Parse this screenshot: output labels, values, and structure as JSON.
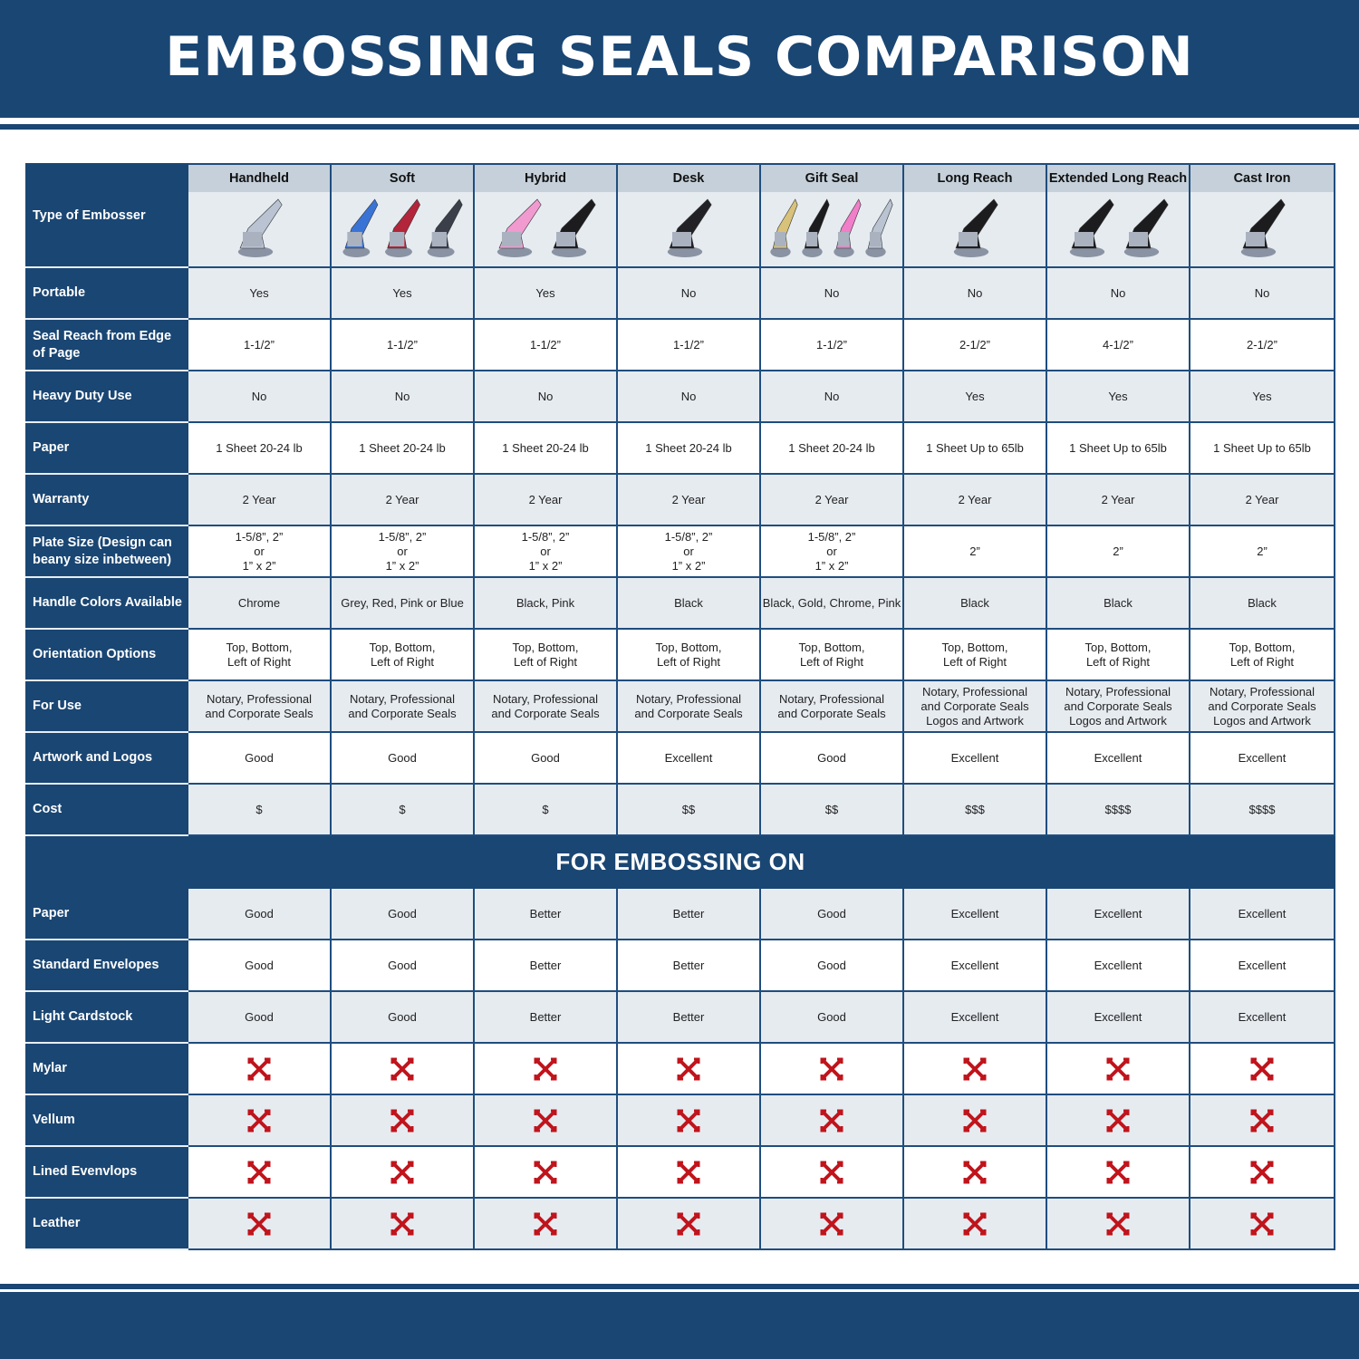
{
  "title": "EMBOSSING SEALS COMPARISON",
  "colors": {
    "brand_blue": "#1a4673",
    "header_gray": "#c5d0da",
    "row_alt": "#e6ebf0",
    "cross_red": "#c0141c"
  },
  "type_label": "Type of Embosser",
  "columns": [
    {
      "name": "Handheld",
      "image_colors": [
        "#b9c3d2"
      ]
    },
    {
      "name": "Soft",
      "image_colors": [
        "#3a73d6",
        "#b3253a",
        "#3a3f4a"
      ]
    },
    {
      "name": "Hybrid",
      "image_colors": [
        "#f09ad0",
        "#1c1c1e"
      ]
    },
    {
      "name": "Desk",
      "image_colors": [
        "#222226"
      ]
    },
    {
      "name": "Gift Seal",
      "image_colors": [
        "#d8c27a",
        "#1c1c1e",
        "#f07ec8",
        "#b9c3d2"
      ]
    },
    {
      "name": "Long Reach",
      "image_colors": [
        "#1c1c1e"
      ]
    },
    {
      "name": "Extended Long Reach",
      "image_colors": [
        "#1c1c1e",
        "#1c1c1e"
      ]
    },
    {
      "name": "Cast Iron",
      "image_colors": [
        "#1c1c1e"
      ]
    }
  ],
  "rows": [
    {
      "label": "Portable",
      "values": [
        "Yes",
        "Yes",
        "Yes",
        "No",
        "No",
        "No",
        "No",
        "No"
      ]
    },
    {
      "label": "Seal Reach from Edge of Page",
      "values": [
        "1-1/2”",
        "1-1/2”",
        "1-1/2”",
        "1-1/2”",
        "1-1/2”",
        "2-1/2”",
        "4-1/2”",
        "2-1/2”"
      ]
    },
    {
      "label": "Heavy Duty Use",
      "values": [
        "No",
        "No",
        "No",
        "No",
        "No",
        "Yes",
        "Yes",
        "Yes"
      ]
    },
    {
      "label": "Paper",
      "values": [
        "1 Sheet 20-24 lb",
        "1 Sheet 20-24 lb",
        "1 Sheet 20-24 lb",
        "1 Sheet 20-24 lb",
        "1 Sheet 20-24 lb",
        "1 Sheet Up to 65lb",
        "1 Sheet Up to 65lb",
        "1 Sheet Up to 65lb"
      ]
    },
    {
      "label": "Warranty",
      "values": [
        "2 Year",
        "2 Year",
        "2 Year",
        "2 Year",
        "2 Year",
        "2 Year",
        "2 Year",
        "2 Year"
      ]
    },
    {
      "label": "Plate Size (Design can beany size inbetween)",
      "values": [
        "1-5/8”, 2”\nor\n1” x 2”",
        "1-5/8”, 2”\nor\n1” x 2”",
        "1-5/8”, 2”\nor\n1” x 2”",
        "1-5/8”, 2”\nor\n1” x 2”",
        "1-5/8”, 2”\nor\n1” x 2”",
        "2”",
        "2”",
        "2”"
      ]
    },
    {
      "label": "Handle Colors Available",
      "values": [
        "Chrome",
        "Grey, Red, Pink or Blue",
        "Black, Pink",
        "Black",
        "Black, Gold, Chrome, Pink",
        "Black",
        "Black",
        "Black"
      ]
    },
    {
      "label": "Orientation Options",
      "values": [
        "Top, Bottom,\nLeft of Right",
        "Top, Bottom,\nLeft of Right",
        "Top, Bottom,\nLeft of Right",
        "Top, Bottom,\nLeft of Right",
        "Top, Bottom,\nLeft of Right",
        "Top, Bottom,\nLeft of Right",
        "Top, Bottom,\nLeft of Right",
        "Top, Bottom,\nLeft of Right"
      ]
    },
    {
      "label": "For Use",
      "values": [
        "Notary, Professional\nand Corporate Seals",
        "Notary, Professional\nand Corporate Seals",
        "Notary, Professional\nand Corporate Seals",
        "Notary, Professional\nand Corporate Seals",
        "Notary, Professional\nand Corporate Seals",
        "Notary, Professional\nand Corporate Seals\nLogos and Artwork",
        "Notary, Professional\nand Corporate Seals\nLogos and Artwork",
        "Notary, Professional\nand Corporate Seals\nLogos and Artwork"
      ]
    },
    {
      "label": "Artwork and Logos",
      "values": [
        "Good",
        "Good",
        "Good",
        "Excellent",
        "Good",
        "Excellent",
        "Excellent",
        "Excellent"
      ]
    },
    {
      "label": "Cost",
      "values": [
        "$",
        "$",
        "$",
        "$$",
        "$$",
        "$$$",
        "$$$$",
        "$$$$"
      ]
    }
  ],
  "section_title": "FOR EMBOSSING ON",
  "embossing_rows": [
    {
      "label": "Paper",
      "values": [
        "Good",
        "Good",
        "Better",
        "Better",
        "Good",
        "Excellent",
        "Excellent",
        "Excellent"
      ]
    },
    {
      "label": "Standard Envelopes",
      "values": [
        "Good",
        "Good",
        "Better",
        "Better",
        "Good",
        "Excellent",
        "Excellent",
        "Excellent"
      ]
    },
    {
      "label": "Light Cardstock",
      "values": [
        "Good",
        "Good",
        "Better",
        "Better",
        "Good",
        "Excellent",
        "Excellent",
        "Excellent"
      ]
    },
    {
      "label": "Mylar",
      "icon": "red-x-icon"
    },
    {
      "label": "Vellum",
      "icon": "red-x-icon"
    },
    {
      "label": "Lined Evenvlops",
      "icon": "red-x-icon"
    },
    {
      "label": "Leather",
      "icon": "red-x-icon"
    }
  ]
}
